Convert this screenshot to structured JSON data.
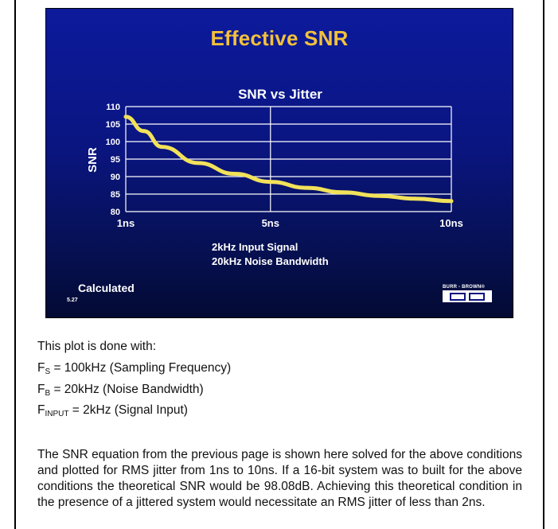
{
  "slide": {
    "title": "Effective SNR",
    "footer_label": "Calculated",
    "slide_number": "5.27",
    "logo_text": "BURR - BROWN®"
  },
  "chart_data": {
    "type": "line",
    "title": "SNR vs Jitter",
    "ylabel": "SNR",
    "xlabel": "",
    "subtitle_lines": [
      "2kHz Input Signal",
      "20kHz Noise Bandwidth"
    ],
    "x_ticks": [
      "1ns",
      "5ns",
      "10ns"
    ],
    "y_ticks": [
      80,
      85,
      90,
      95,
      100,
      105,
      110
    ],
    "ylim": [
      80,
      110
    ],
    "xlim": [
      1,
      10
    ],
    "grid": true,
    "series": [
      {
        "x": [
          1,
          1.5,
          2,
          3,
          4,
          5,
          6,
          7,
          8,
          9,
          10
        ],
        "y": [
          107.1,
          103.0,
          98.5,
          93.9,
          90.8,
          88.5,
          86.8,
          85.5,
          84.5,
          83.7,
          83.0
        ]
      }
    ],
    "colors": {
      "line": "#f2e25a",
      "grid": "#ffffff"
    }
  },
  "text": {
    "intro": "This plot is done with:",
    "formulas": [
      {
        "symbol": "F",
        "sub": "S",
        "rest": " = 100kHz (Sampling Frequency)"
      },
      {
        "symbol": "F",
        "sub": "B",
        "rest": " = 20kHz (Noise Bandwidth)"
      },
      {
        "symbol": "F",
        "sub": "INPUT",
        "rest": " = 2kHz (Signal Input)"
      }
    ],
    "paragraph": "The SNR equation from the previous page is shown here solved for the above conditions and plotted for RMS jitter from 1ns to 10ns. If a 16-bit system was to built for the above conditions the theoretical SNR would be 98.08dB. Achieving this theoretical condition in the presence of a jittered system would necessitate an RMS jitter of less than 2ns."
  }
}
